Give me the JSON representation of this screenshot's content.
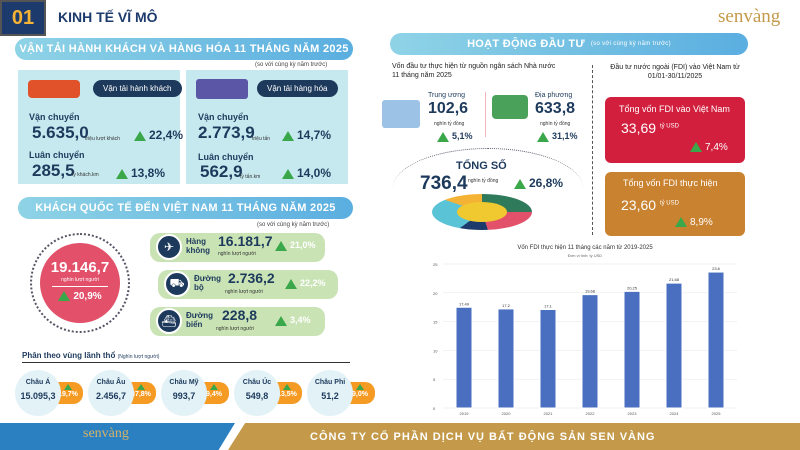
{
  "header": {
    "number": "01",
    "title": "KINH TẾ VĨ MÔ",
    "logo": "senvàng"
  },
  "transport": {
    "title": "VẬN TẢI HÀNH KHÁCH VÀ HÀNG HÓA 11 THÁNG NĂM 2025",
    "note": "(so với cùng kỳ năm trước)",
    "passenger": {
      "label": "Vận tải hành khách",
      "carry_label": "Vận chuyển",
      "carry_value": "5.635,0",
      "carry_unit": "triệu lượt khách",
      "carry_pct": "22,4%",
      "rot_label": "Luân chuyển",
      "rot_value": "285,5",
      "rot_unit": "tỷ khách.km",
      "rot_pct": "13,8%"
    },
    "cargo": {
      "label": "Vận tải hàng hóa",
      "carry_label": "Vận chuyển",
      "carry_value": "2.773,9",
      "carry_unit": "triệu tấn",
      "carry_pct": "14,7%",
      "rot_label": "Luân chuyển",
      "rot_value": "562,9",
      "rot_unit": "tỷ tấn.km",
      "rot_pct": "14,0%"
    }
  },
  "tourism": {
    "title": "KHÁCH QUỐC TẾ ĐẾN VIỆT NAM 11 THÁNG NĂM 2025",
    "note": "(so với cùng kỳ năm trước)",
    "total": "19.146,7",
    "total_unit": "nghìn lượt người",
    "total_pct": "20,9%",
    "modes": [
      {
        "name": "Hàng không",
        "value": "16.181,7",
        "unit": "nghìn lượt người",
        "pct": "21,0%"
      },
      {
        "name": "Đường bộ",
        "value": "2.736,2",
        "unit": "nghìn lượt người",
        "pct": "22,2%"
      },
      {
        "name": "Đường biển",
        "value": "228,8",
        "unit": "nghìn lượt người",
        "pct": "3,4%"
      }
    ],
    "region_title": "Phân theo vùng lãnh thổ",
    "region_unit": "(Nghìn lượt người)",
    "regions": [
      {
        "name": "Châu Á",
        "value": "15.095,3",
        "pct": "19,7%"
      },
      {
        "name": "Châu Âu",
        "value": "2.456,7",
        "pct": "37,8%"
      },
      {
        "name": "Châu Mỹ",
        "value": "993,7",
        "pct": "9,4%"
      },
      {
        "name": "Châu Úc",
        "value": "549,8",
        "pct": "13,5%"
      },
      {
        "name": "Châu Phi",
        "value": "51,2",
        "pct": "9,0%"
      }
    ]
  },
  "investment": {
    "title": "HOẠT ĐỘNG ĐẦU TƯ",
    "note": "(so với cùng kỳ năm trước)",
    "budget_title": "Vốn đầu tư thực hiện từ nguồn ngân sách Nhà nước 11 tháng năm 2025",
    "central": {
      "label": "Trung ương",
      "value": "102,6",
      "unit": "nghìn tỷ đồng",
      "pct": "5,1%"
    },
    "local": {
      "label": "Địa phương",
      "value": "633,8",
      "unit": "nghìn tỷ đồng",
      "pct": "31,1%"
    },
    "total_label": "TỔNG SỐ",
    "total_value": "736,4",
    "total_unit": "nghìn tỷ đồng",
    "total_pct": "26,8%",
    "fdi_title": "Đầu tư nước ngoài (FDI) vào Việt Nam từ 01/01-30/11/2025",
    "fdi_registered": {
      "label": "Tổng vốn FDI vào Việt Nam",
      "value": "33,69",
      "unit": "tỷ USD",
      "pct": "7,4%"
    },
    "fdi_disbursed": {
      "label": "Tổng vốn FDI thực hiện",
      "value": "23,60",
      "unit": "tỷ USD",
      "pct": "8,9%"
    }
  },
  "chart_data": {
    "type": "bar",
    "title": "Vốn FDI thực hiện 11 tháng các năm từ 2019-2025",
    "subtitle": "Đơn vị tính: tỷ USD",
    "categories": [
      "2019",
      "2020",
      "2021",
      "2022",
      "2023",
      "2024",
      "2025"
    ],
    "values": [
      17.49,
      17.2,
      17.1,
      19.68,
      20.25,
      21.68,
      23.6
    ],
    "labels": [
      "17,49",
      "17,2",
      "17,1",
      "19,68",
      "20,25",
      "21,68",
      "23,6"
    ],
    "ylim": [
      0,
      25
    ],
    "yticks": [
      0,
      5,
      10,
      15,
      20,
      25
    ],
    "color": "#4a6fc1"
  },
  "footer": {
    "logo": "senvàng",
    "company": "CÔNG TY CỔ PHẦN DỊCH VỤ BẤT ĐỘNG SẢN SEN VÀNG"
  }
}
